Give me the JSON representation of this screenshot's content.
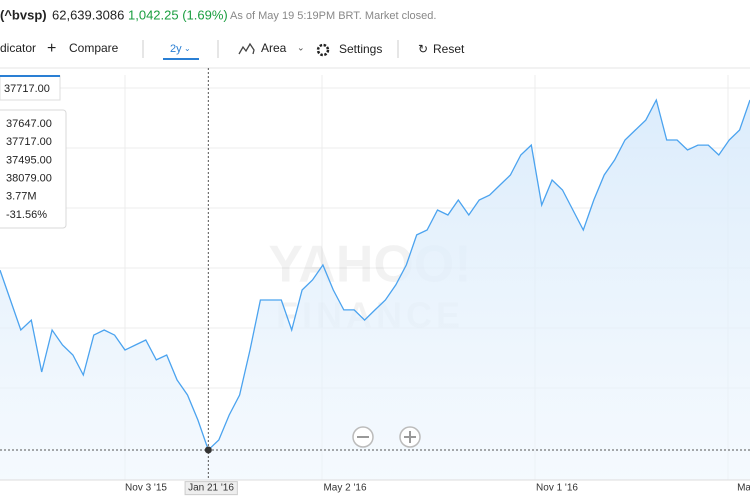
{
  "header": {
    "symbol": "(^bvsp)",
    "price": "62,639.3086",
    "change": "1,042.25 (1.69%)",
    "status": "As of May 19 5:19PM BRT. Market closed."
  },
  "toolbar": {
    "indicator": "dicator",
    "compare": "Compare",
    "range": "2y",
    "chart_type": "Area",
    "settings": "Settings",
    "reset": "Reset"
  },
  "crosshair_label": "37717.00",
  "tooltip": [
    "37647.00",
    "37717.00",
    "37495.00",
    "38079.00",
    "3.77M",
    "-31.56%"
  ],
  "watermark": [
    "YAHOO!",
    "FINANCE"
  ],
  "chart_data": {
    "type": "area",
    "color": "#4ba3ef",
    "x_labels": [
      "Nov 3 '15",
      "Jan 21 '16",
      "May 2 '16",
      "Nov 1 '16",
      "Ma"
    ],
    "values": [
      50530,
      48400,
      46260,
      46970,
      43270,
      46260,
      45190,
      44480,
      43060,
      45900,
      46260,
      45900,
      44840,
      45190,
      45550,
      44130,
      44480,
      42700,
      41630,
      39850,
      37717,
      38430,
      40210,
      41630,
      44840,
      48400,
      48400,
      48400,
      46260,
      49110,
      49820,
      50890,
      49110,
      47690,
      47690,
      46970,
      47690,
      48400,
      49470,
      50890,
      53030,
      53380,
      54810,
      54450,
      55520,
      54450,
      55520,
      55870,
      56590,
      57300,
      58720,
      59430,
      55160,
      56940,
      56230,
      54810,
      53380,
      55520,
      57300,
      58370,
      59790,
      60500,
      61210,
      62640,
      59790,
      59790,
      59080,
      59430,
      59430,
      58720,
      59790,
      60500,
      62639
    ],
    "ylim": [
      35580,
      64420
    ]
  }
}
